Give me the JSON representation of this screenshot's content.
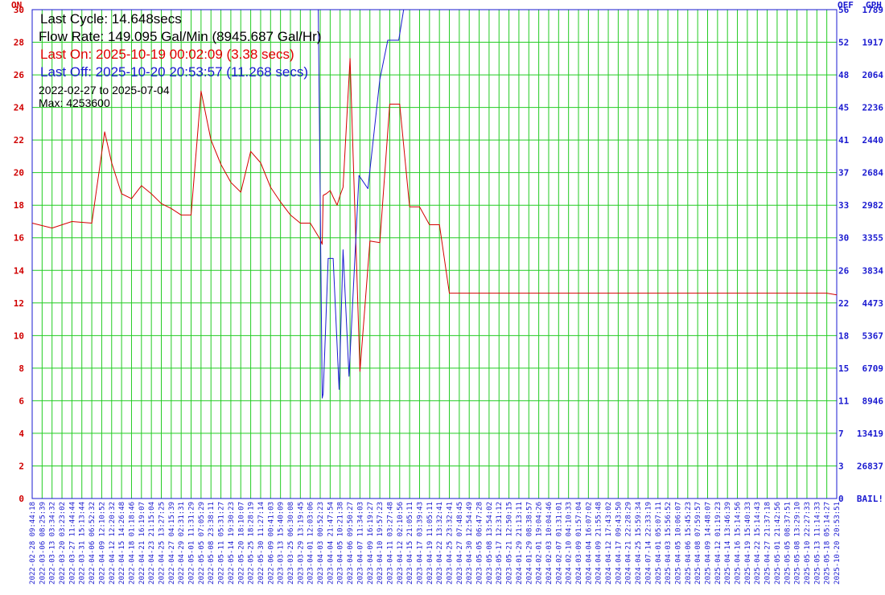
{
  "chart_data": {
    "type": "line",
    "x_range": [
      "2022-02-28 09:44:18",
      "2025-10-20 20:53:51"
    ],
    "left_axis": {
      "top_label": "ON",
      "ticks": [
        "30",
        "28",
        "26",
        "24",
        "22",
        "20",
        "18",
        "16",
        "14",
        "12",
        "10",
        "8",
        "6",
        "4",
        "2",
        "0"
      ],
      "ylim": [
        0,
        30
      ]
    },
    "right_axis": {
      "label_off": "OFF",
      "label_gph": "GPH",
      "ticks_off": [
        "56",
        "52",
        "48",
        "45",
        "41",
        "37",
        "33",
        "30",
        "26",
        "22",
        "18",
        "15",
        "11",
        "7",
        "3",
        "0"
      ],
      "ticks_gph": [
        "1789",
        "1917",
        "2064",
        "2236",
        "2440",
        "2684",
        "2982",
        "3355",
        "3834",
        "4473",
        "5367",
        "6709",
        "8946",
        "13419",
        "26837",
        "BAIL!"
      ],
      "ylim": [
        0,
        56
      ]
    },
    "x_ticks": [
      "2022-02-28 09:44:18",
      "2022-03-06 08:25:39",
      "2022-03-13 03:34:32",
      "2022-03-20 03:23:02",
      "2022-03-27 11:44:44",
      "2022-03-31 15:13:44",
      "2022-04-06 06:52:32",
      "2022-04-09 12:10:52",
      "2022-04-12 12:20:32",
      "2022-04-15 14:26:48",
      "2022-04-18 01:18:46",
      "2022-04-21 16:19:07",
      "2022-04-23 21:15:04",
      "2022-04-25 13:27:25",
      "2022-04-27 04:15:39",
      "2022-04-29 02:31:31",
      "2022-05-01 11:31:29",
      "2022-05-05 07:05:29",
      "2022-05-08 23:38:11",
      "2022-05-11 05:31:27",
      "2022-05-14 19:30:23",
      "2022-05-20 18:10:07",
      "2022-05-25 18:28:19",
      "2022-05-30 11:27:14",
      "2022-06-09 00:41:03",
      "2023-03-13 15:40:09",
      "2023-03-25 06:30:08",
      "2023-03-29 13:19:45",
      "2023-04-01 12:03:06",
      "2023-04-03 00:52:23",
      "2023-04-04 21:47:54",
      "2023-04-05 10:21:38",
      "2023-04-06 09:50:27",
      "2023-04-07 11:34:03",
      "2023-04-09 16:19:27",
      "2023-04-10 19:57:23",
      "2023-04-11 03:27:48",
      "2023-04-12 02:10:56",
      "2023-04-15 21:05:11",
      "2023-04-17 03:39:43",
      "2023-04-19 11:05:11",
      "2023-04-22 13:32:41",
      "2023-04-25 23:32:41",
      "2023-04-27 07:48:45",
      "2023-04-30 12:54:49",
      "2023-05-05 06:47:28",
      "2023-05-08 13:54:02",
      "2023-05-17 12:31:12",
      "2023-05-21 12:50:15",
      "2024-01-29 21:13:11",
      "2024-01-29 08:38:57",
      "2024-02-01 19:04:26",
      "2024-02-03 10:04:46",
      "2024-02-07 01:31:01",
      "2024-02-10 04:10:33",
      "2024-03-09 01:57:04",
      "2024-04-04 16:07:02",
      "2024-04-09 21:55:48",
      "2024-04-12 17:43:02",
      "2024-04-17 09:43:50",
      "2024-04-21 22:28:29",
      "2024-04-25 15:59:34",
      "2024-07-14 22:33:19",
      "2025-04-01 05:07:11",
      "2025-04-03 15:56:52",
      "2025-04-05 10:06:07",
      "2025-04-06 15:45:23",
      "2025-04-08 07:59:57",
      "2025-04-09 14:48:07",
      "2025-04-12 01:19:23",
      "2025-04-14 13:46:39",
      "2025-04-16 15:14:56",
      "2025-04-19 15:40:33",
      "2025-04-22 15:14:43",
      "2025-04-27 21:37:18",
      "2025-05-01 21:42:56",
      "2025-05-05 08:37:51",
      "2025-05-08 13:29:10",
      "2025-05-10 22:27:33",
      "2025-05-13 11:14:33",
      "2025-05-18 05:14:27",
      "2025-10-20 20:53:51"
    ],
    "series": [
      {
        "name": "",
        "axis": "left",
        "color": "#d40000",
        "x": [
          0,
          2,
          4,
          6,
          7.3,
          8,
          9,
          10,
          11,
          12,
          13,
          14,
          15,
          16,
          17,
          18,
          19,
          20,
          21,
          22,
          23,
          24,
          25,
          26,
          27,
          28,
          29,
          29.2,
          29.3,
          29.6,
          30,
          30.3,
          30.7,
          31,
          31.3,
          32,
          33,
          34,
          35,
          36,
          37,
          38,
          39,
          40,
          41,
          42,
          43,
          44,
          45,
          46,
          47,
          48,
          49,
          50,
          51,
          52,
          53,
          54,
          55,
          56,
          57,
          58,
          59,
          60,
          61,
          62,
          63,
          64,
          65,
          66,
          67,
          68,
          69,
          70,
          71,
          72,
          73,
          74,
          75,
          76,
          77,
          78,
          79,
          80,
          81
        ],
        "y": [
          16.9,
          16.6,
          17.0,
          16.9,
          22.5,
          20.6,
          18.7,
          18.4,
          19.2,
          18.7,
          18.1,
          17.8,
          17.4,
          17.4,
          25.0,
          22.0,
          20.5,
          19.4,
          18.8,
          21.3,
          20.6,
          19.1,
          18.2,
          17.4,
          16.9,
          16.9,
          15.9,
          15.6,
          18.6,
          18.7,
          18.9,
          18.5,
          18.0,
          18.6,
          19.1,
          27.0,
          7.8,
          15.8,
          15.7,
          24.2,
          24.2,
          17.9,
          17.9,
          16.8,
          16.8,
          12.6,
          12.6,
          12.6,
          12.6,
          12.6,
          12.6,
          12.6,
          12.6,
          12.6,
          12.6,
          12.6,
          12.6,
          12.6,
          12.6,
          12.6,
          12.6,
          12.6,
          12.6,
          12.6,
          12.6,
          12.6,
          12.6,
          12.6,
          12.6,
          12.6,
          12.6,
          12.6,
          12.6,
          12.6,
          12.6,
          12.6,
          12.6,
          12.6,
          12.6,
          12.6,
          12.6,
          12.6,
          12.6,
          12.6,
          12.5
        ]
      },
      {
        "name": "",
        "axis": "right",
        "color": "#1a1ad0",
        "x": [
          13.8,
          14.5,
          15.6,
          16.4,
          17.4,
          18.6,
          19.8,
          27.5,
          28.8,
          29.2,
          29.3,
          29.8,
          30.3,
          30.9,
          31.3,
          31.9,
          32.9,
          33.8,
          35.0,
          35.8,
          36.9,
          37.4,
          38.9,
          39.9,
          40.9,
          41.9,
          42.9,
          43.9,
          44.9,
          45.9,
          46.9,
          47.9,
          48.9,
          49.9,
          50.9,
          51.9,
          52.9,
          53.9,
          54.9,
          55.9,
          56.9,
          57.9,
          58.9,
          59.9,
          60.9,
          61.9,
          62.9,
          63.9,
          64.9,
          65.9,
          66.9,
          67.9,
          68.9,
          69.9,
          70.9,
          71.9,
          72.9,
          73.9,
          74.9,
          75.9,
          76.9,
          77.9,
          78.9,
          79.9,
          80.9
        ],
        "y": [
          56,
          56,
          56,
          56,
          56,
          56,
          56,
          56,
          56,
          11.5,
          12,
          27.5,
          27.5,
          12.5,
          28.5,
          14,
          37,
          35.5,
          48,
          52.5,
          52.5,
          56,
          56,
          56,
          56,
          56,
          56,
          56,
          56,
          56,
          56,
          56,
          56,
          56,
          56,
          56,
          56,
          56,
          56,
          56,
          56,
          56,
          56,
          56,
          56,
          56,
          56,
          56,
          56,
          56,
          56,
          56,
          56,
          56,
          56,
          56,
          56,
          56,
          56,
          56,
          56,
          56,
          56,
          56,
          56
        ]
      }
    ],
    "info": {
      "last_cycle": "Last Cycle: 14.648secs",
      "flow_rate": "Flow Rate: 149.095 Gal/Min (8945.687 Gal/Hr)",
      "last_on": "Last On: 2025-10-19 00:02:09 (3.38 secs)",
      "last_off": "Last Off: 2025-10-20 20:53:57 (11.268 secs)",
      "range": "2022-02-27 to 2025-07-04",
      "max": "Max: 4253600"
    },
    "grid": true,
    "colors": {
      "grid": "#22cc22",
      "left_axis": "#d40000",
      "right_axis": "#1a1ad0",
      "frame": "#1a1ad0"
    }
  }
}
